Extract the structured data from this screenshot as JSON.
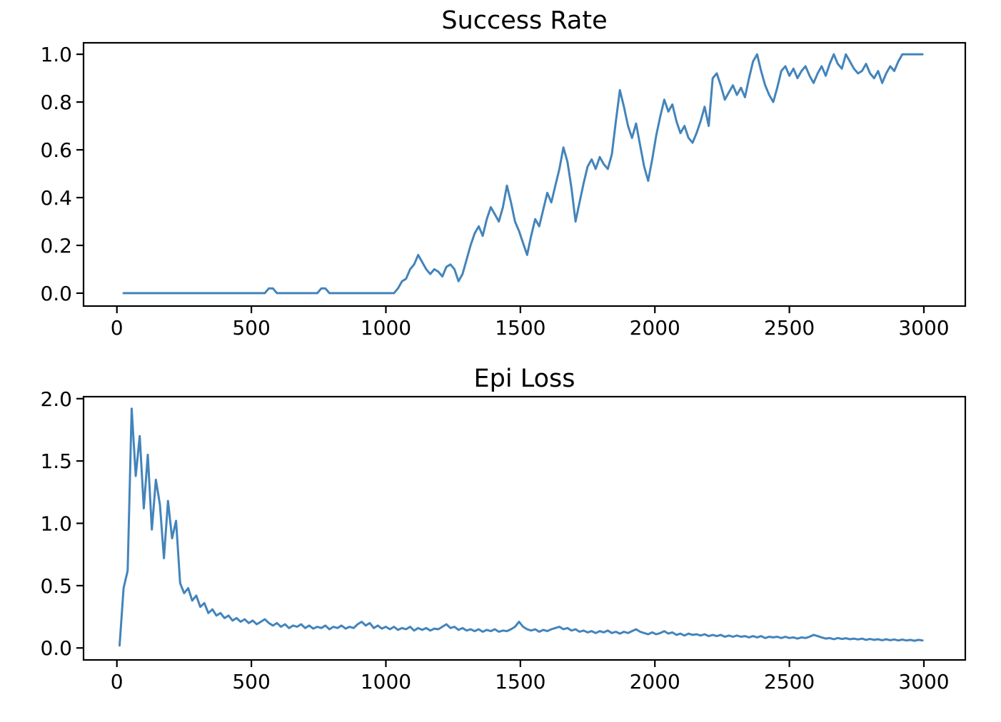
{
  "figure": {
    "background": "#ffffff",
    "axis_color": "#000000",
    "text_color": "#000000",
    "line_color": "#4384bb"
  },
  "chart_data": [
    {
      "type": "line",
      "title": "Success Rate",
      "xlabel": "",
      "ylabel": "",
      "grid": false,
      "legend": "none",
      "xlim": [
        -124,
        3154
      ],
      "ylim": [
        -0.054,
        1.048
      ],
      "x_ticks": [
        0,
        500,
        1000,
        1500,
        2000,
        2500,
        3000
      ],
      "x_tick_labels": [
        "0",
        "500",
        "1000",
        "1500",
        "2000",
        "2500",
        "3000"
      ],
      "y_ticks": [
        0.0,
        0.2,
        0.4,
        0.6,
        0.8,
        1.0
      ],
      "y_tick_labels": [
        "0.0",
        "0.2",
        "0.4",
        "0.6",
        "0.8",
        "1.0"
      ],
      "series": [
        {
          "name": "success_rate",
          "color": "#4384bb",
          "x0": 25,
          "dx": 15,
          "values": [
            0,
            0,
            0,
            0,
            0,
            0,
            0,
            0,
            0,
            0,
            0,
            0,
            0,
            0,
            0,
            0,
            0,
            0,
            0,
            0,
            0,
            0,
            0,
            0,
            0,
            0,
            0,
            0,
            0,
            0,
            0,
            0,
            0,
            0,
            0,
            0,
            0.02,
            0.02,
            0,
            0,
            0,
            0,
            0,
            0,
            0,
            0,
            0,
            0,
            0,
            0.02,
            0.02,
            0,
            0,
            0,
            0,
            0,
            0,
            0,
            0,
            0,
            0,
            0,
            0,
            0,
            0,
            0,
            0,
            0,
            0.02,
            0.05,
            0.06,
            0.1,
            0.12,
            0.16,
            0.13,
            0.1,
            0.08,
            0.1,
            0.09,
            0.07,
            0.11,
            0.12,
            0.1,
            0.05,
            0.08,
            0.14,
            0.2,
            0.25,
            0.28,
            0.24,
            0.31,
            0.36,
            0.33,
            0.3,
            0.36,
            0.45,
            0.38,
            0.3,
            0.26,
            0.21,
            0.16,
            0.24,
            0.31,
            0.28,
            0.35,
            0.42,
            0.38,
            0.45,
            0.52,
            0.61,
            0.55,
            0.44,
            0.3,
            0.38,
            0.46,
            0.53,
            0.56,
            0.52,
            0.57,
            0.54,
            0.52,
            0.58,
            0.72,
            0.85,
            0.78,
            0.7,
            0.65,
            0.71,
            0.62,
            0.53,
            0.47,
            0.56,
            0.66,
            0.74,
            0.81,
            0.76,
            0.79,
            0.72,
            0.67,
            0.7,
            0.65,
            0.63,
            0.67,
            0.72,
            0.78,
            0.7,
            0.9,
            0.92,
            0.87,
            0.81,
            0.84,
            0.87,
            0.83,
            0.86,
            0.82,
            0.9,
            0.97,
            1.0,
            0.93,
            0.87,
            0.83,
            0.8,
            0.86,
            0.93,
            0.95,
            0.91,
            0.94,
            0.9,
            0.93,
            0.95,
            0.91,
            0.88,
            0.92,
            0.95,
            0.91,
            0.96,
            1.0,
            0.96,
            0.94,
            1.0,
            0.97,
            0.94,
            0.92,
            0.93,
            0.96,
            0.92,
            0.9,
            0.93,
            0.88,
            0.92,
            0.95,
            0.93,
            0.97,
            1.0,
            1.0,
            1.0,
            1.0,
            1.0,
            1.0
          ]
        }
      ]
    },
    {
      "type": "line",
      "title": "Epi Loss",
      "xlabel": "",
      "ylabel": "",
      "grid": false,
      "legend": "none",
      "xlim": [
        -124,
        3154
      ],
      "ylim": [
        -0.096,
        2.016
      ],
      "x_ticks": [
        0,
        500,
        1000,
        1500,
        2000,
        2500,
        3000
      ],
      "x_tick_labels": [
        "0",
        "500",
        "1000",
        "1500",
        "2000",
        "2500",
        "3000"
      ],
      "y_ticks": [
        0.0,
        0.5,
        1.0,
        1.5,
        2.0
      ],
      "y_tick_labels": [
        "0.0",
        "0.5",
        "1.0",
        "1.5",
        "2.0"
      ],
      "series": [
        {
          "name": "epi_loss",
          "color": "#4384bb",
          "x0": 10,
          "dx": 15,
          "values": [
            0.02,
            0.48,
            0.62,
            1.92,
            1.38,
            1.7,
            1.12,
            1.55,
            0.95,
            1.35,
            1.15,
            0.72,
            1.18,
            0.88,
            1.02,
            0.52,
            0.44,
            0.48,
            0.38,
            0.42,
            0.33,
            0.36,
            0.28,
            0.31,
            0.26,
            0.28,
            0.24,
            0.26,
            0.22,
            0.24,
            0.21,
            0.23,
            0.2,
            0.22,
            0.19,
            0.21,
            0.23,
            0.2,
            0.18,
            0.2,
            0.17,
            0.19,
            0.16,
            0.18,
            0.17,
            0.19,
            0.16,
            0.18,
            0.155,
            0.17,
            0.16,
            0.18,
            0.15,
            0.17,
            0.16,
            0.18,
            0.155,
            0.17,
            0.16,
            0.19,
            0.21,
            0.18,
            0.2,
            0.16,
            0.18,
            0.155,
            0.17,
            0.15,
            0.17,
            0.145,
            0.16,
            0.15,
            0.17,
            0.14,
            0.16,
            0.145,
            0.16,
            0.14,
            0.155,
            0.15,
            0.17,
            0.19,
            0.16,
            0.17,
            0.145,
            0.16,
            0.14,
            0.15,
            0.135,
            0.15,
            0.13,
            0.145,
            0.135,
            0.15,
            0.13,
            0.14,
            0.135,
            0.15,
            0.17,
            0.21,
            0.17,
            0.15,
            0.14,
            0.15,
            0.13,
            0.145,
            0.135,
            0.15,
            0.16,
            0.17,
            0.15,
            0.16,
            0.14,
            0.15,
            0.13,
            0.14,
            0.125,
            0.135,
            0.12,
            0.135,
            0.125,
            0.14,
            0.12,
            0.13,
            0.115,
            0.13,
            0.12,
            0.135,
            0.15,
            0.13,
            0.12,
            0.11,
            0.125,
            0.11,
            0.12,
            0.135,
            0.115,
            0.125,
            0.105,
            0.115,
            0.1,
            0.115,
            0.105,
            0.11,
            0.1,
            0.11,
            0.095,
            0.105,
            0.095,
            0.105,
            0.09,
            0.1,
            0.09,
            0.1,
            0.09,
            0.095,
            0.085,
            0.095,
            0.085,
            0.095,
            0.08,
            0.09,
            0.085,
            0.09,
            0.08,
            0.09,
            0.08,
            0.085,
            0.075,
            0.085,
            0.08,
            0.09,
            0.105,
            0.095,
            0.085,
            0.075,
            0.08,
            0.07,
            0.08,
            0.072,
            0.078,
            0.07,
            0.075,
            0.068,
            0.075,
            0.065,
            0.072,
            0.065,
            0.07,
            0.062,
            0.07,
            0.062,
            0.068,
            0.06,
            0.067,
            0.06,
            0.065,
            0.058,
            0.065,
            0.06
          ]
        }
      ]
    }
  ]
}
